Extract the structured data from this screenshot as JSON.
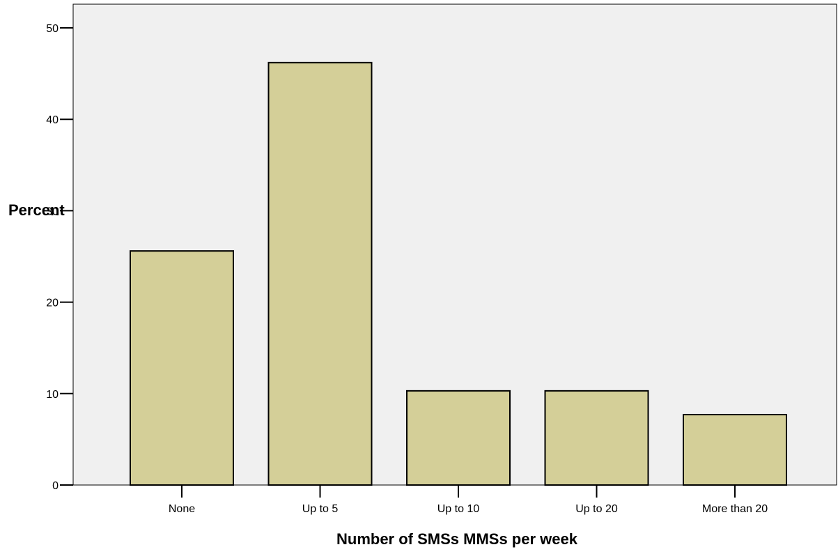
{
  "chart_data": {
    "type": "bar",
    "categories": [
      "None",
      "Up to 5",
      "Up to 10",
      "Up to 20",
      "More than 20"
    ],
    "values": [
      25.6,
      46.2,
      10.3,
      10.3,
      7.7
    ],
    "xlabel": "Number of SMSs MMSs per week",
    "ylabel": "Percent",
    "ylim": [
      0,
      50
    ],
    "yticks": [
      "0",
      "10",
      "20",
      "30",
      "40",
      "50"
    ],
    "grid": false,
    "colors": {
      "bar_fill": "#d4cf98",
      "plot_background": "#f0f0f0"
    }
  }
}
